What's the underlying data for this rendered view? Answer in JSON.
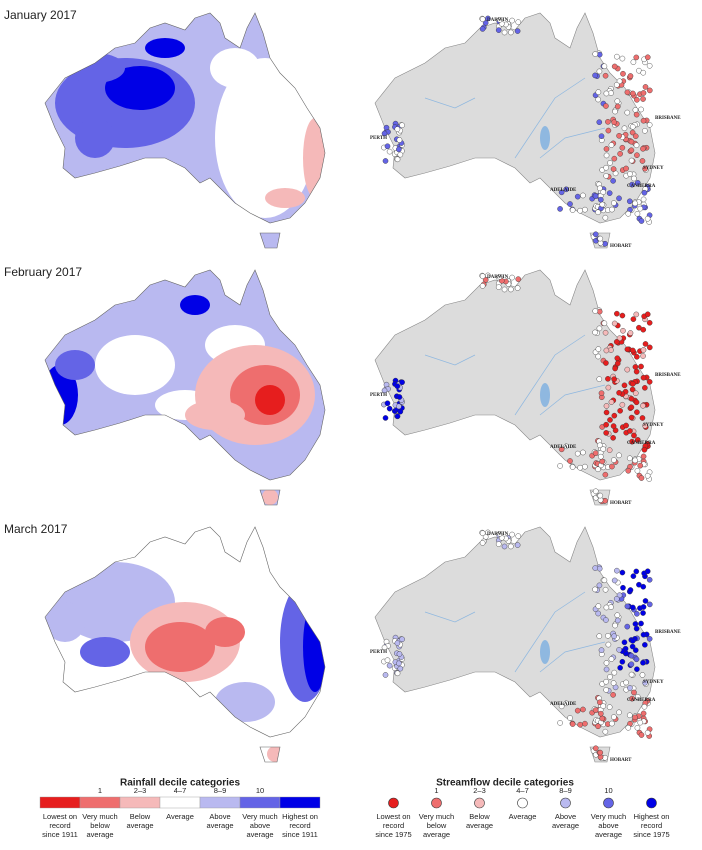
{
  "panels": [
    {
      "title": "January 2017"
    },
    {
      "title": "February 2017"
    },
    {
      "title": "March 2017"
    }
  ],
  "city_labels": [
    "DARWIN",
    "PERTH",
    "ADELAIDE",
    "BRISBANE",
    "SYDNEY",
    "CANBERRA",
    "HOBART"
  ],
  "legends": [
    {
      "title": "Rainfall decile categories",
      "deciles": [
        "1",
        "2–3",
        "4–7",
        "8–9",
        "10"
      ],
      "categories": [
        [
          "Lowest on",
          "record",
          "since 1911"
        ],
        [
          "Very much",
          "below",
          "average"
        ],
        [
          "Below",
          "average"
        ],
        [
          "Average"
        ],
        [
          "Above",
          "average"
        ],
        [
          "Very much",
          "above",
          "average"
        ],
        [
          "Highest on",
          "record",
          "since 1911"
        ]
      ]
    },
    {
      "title": "Streamflow decile categories",
      "deciles": [
        "1",
        "2–3",
        "4–7",
        "8–9",
        "10"
      ],
      "categories": [
        [
          "Lowest on",
          "record",
          "since 1975"
        ],
        [
          "Very much",
          "below",
          "average"
        ],
        [
          "Below",
          "average"
        ],
        [
          "Average"
        ],
        [
          "Above",
          "average"
        ],
        [
          "Very much",
          "above",
          "average"
        ],
        [
          "Highest on",
          "record",
          "since 1975"
        ]
      ]
    }
  ]
}
